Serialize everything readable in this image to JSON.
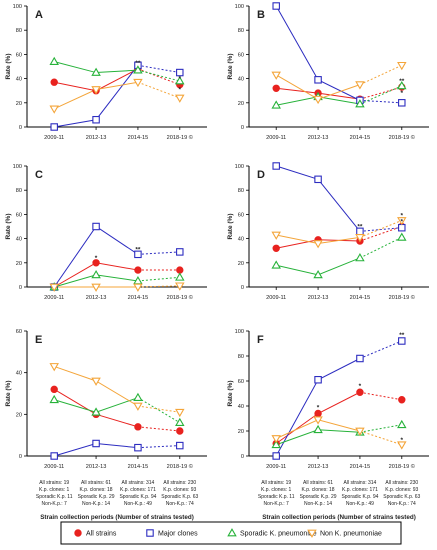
{
  "figure": {
    "xlabel": "Strain collection periods (Number of strains tested)",
    "ylabel": "Rate (%)",
    "categories": [
      "2009-11",
      "2012-13",
      "2014-15",
      "2018-19 ©"
    ],
    "strain_counts": [
      [
        "All strains: 19",
        "K.p. clones: 1",
        "Sporadic K.p. 11",
        "Non-K.p.: 7"
      ],
      [
        "All strains: 61",
        "K.p. clones: 18",
        "Sporadic K.p. 29",
        "Non-K.p.: 14"
      ],
      [
        "All strains: 314",
        "K.p. clones: 171",
        "Sporadic K.p. 94",
        "Non-K.p.: 49"
      ],
      [
        "All strains: 230",
        "K.p. clones: 93",
        "Sporadic K.p. 63",
        "Non-K.p.: 74"
      ]
    ],
    "legend": [
      {
        "label": "All strains",
        "color": "#e8221f",
        "marker": "circle"
      },
      {
        "label": "Major clones",
        "color": "#2c2cc0",
        "marker": "square"
      },
      {
        "label": "Sporadic K. pneumoniae",
        "color": "#27b23a",
        "marker": "triangle-up"
      },
      {
        "label": "Non K. pneumoniae",
        "color": "#f4a53a",
        "marker": "triangle-down"
      }
    ]
  },
  "chart_data": [
    {
      "type": "line",
      "panel": "A",
      "ylim": [
        0,
        100
      ],
      "yticks": [
        0,
        20,
        40,
        60,
        80,
        100
      ],
      "x": [
        "2009-11",
        "2012-13",
        "2014-15",
        "2018-19 ©"
      ],
      "series": [
        {
          "name": "All strains",
          "values": [
            37,
            30,
            48,
            35
          ]
        },
        {
          "name": "Major clones",
          "values": [
            0,
            6,
            51,
            45
          ]
        },
        {
          "name": "Sporadic K. pneumoniae",
          "values": [
            54,
            45,
            47,
            38
          ]
        },
        {
          "name": "Non K. pneumoniae",
          "values": [
            15,
            31,
            37,
            24
          ]
        }
      ],
      "annotations": [
        {
          "x": "2014-15",
          "y": 53,
          "text": "**"
        },
        {
          "x": "2018-19 ©",
          "y": 40,
          "text": "*"
        },
        {
          "x": "2018-19 ©",
          "y": 31,
          "text": "*"
        }
      ]
    },
    {
      "type": "line",
      "panel": "B",
      "ylim": [
        0,
        100
      ],
      "yticks": [
        0,
        20,
        40,
        60,
        80,
        100
      ],
      "x": [
        "2009-11",
        "2012-13",
        "2014-15",
        "2018-19 ©"
      ],
      "series": [
        {
          "name": "All strains",
          "values": [
            32,
            28,
            23,
            33
          ]
        },
        {
          "name": "Major clones",
          "values": [
            100,
            39,
            22,
            20
          ]
        },
        {
          "name": "Sporadic K. pneumoniae",
          "values": [
            18,
            25,
            19,
            34
          ]
        },
        {
          "name": "Non K. pneumoniae",
          "values": [
            43,
            23,
            35,
            51
          ]
        }
      ],
      "annotations": [
        {
          "x": "2018-19 ©",
          "y": 38,
          "text": "**"
        },
        {
          "x": "2018-19 ©",
          "y": 28,
          "text": "*"
        }
      ]
    },
    {
      "type": "line",
      "panel": "C",
      "ylim": [
        0,
        100
      ],
      "yticks": [
        0,
        20,
        40,
        60,
        80,
        100
      ],
      "x": [
        "2009-11",
        "2012-13",
        "2014-15",
        "2018-19 ©"
      ],
      "series": [
        {
          "name": "All strains",
          "values": [
            0,
            20,
            14,
            14
          ]
        },
        {
          "name": "Major clones",
          "values": [
            0,
            50,
            27,
            29
          ]
        },
        {
          "name": "Sporadic K. pneumoniae",
          "values": [
            0,
            10,
            5,
            8
          ]
        },
        {
          "name": "Non K. pneumoniae",
          "values": [
            0,
            0,
            0,
            1
          ]
        }
      ],
      "annotations": [
        {
          "x": "2012-13",
          "y": 24,
          "text": "*"
        },
        {
          "x": "2014-15",
          "y": 31,
          "text": "**"
        }
      ]
    },
    {
      "type": "line",
      "panel": "D",
      "ylim": [
        0,
        100
      ],
      "yticks": [
        0,
        20,
        40,
        60,
        80,
        100
      ],
      "x": [
        "2009-11",
        "2012-13",
        "2014-15",
        "2018-19 ©"
      ],
      "series": [
        {
          "name": "All strains",
          "values": [
            32,
            39,
            38,
            50
          ]
        },
        {
          "name": "Major clones",
          "values": [
            100,
            89,
            46,
            49
          ]
        },
        {
          "name": "Sporadic K. pneumoniae",
          "values": [
            18,
            10,
            24,
            41
          ]
        },
        {
          "name": "Non K. pneumoniae",
          "values": [
            43,
            36,
            41,
            55
          ]
        }
      ],
      "annotations": [
        {
          "x": "2014-15",
          "y": 50,
          "text": "**"
        },
        {
          "x": "2018-19 ©",
          "y": 59,
          "text": "*"
        },
        {
          "x": "2018-19 ©",
          "y": 54,
          "text": "*"
        }
      ]
    },
    {
      "type": "line",
      "panel": "E",
      "ylim": [
        0,
        60
      ],
      "yticks": [
        0,
        20,
        40,
        60
      ],
      "x": [
        "2009-11",
        "2012-13",
        "2014-15",
        "2018-19 ©"
      ],
      "series": [
        {
          "name": "All strains",
          "values": [
            32,
            20,
            14,
            12
          ]
        },
        {
          "name": "Major clones",
          "values": [
            0,
            6,
            4,
            5
          ]
        },
        {
          "name": "Sporadic K. pneumoniae",
          "values": [
            27,
            21,
            28,
            16
          ]
        },
        {
          "name": "Non K. pneumoniae",
          "values": [
            43,
            36,
            24,
            21
          ]
        }
      ],
      "annotations": []
    },
    {
      "type": "line",
      "panel": "F",
      "ylim": [
        0,
        100
      ],
      "yticks": [
        0,
        20,
        40,
        60,
        80,
        100
      ],
      "x": [
        "2009-11",
        "2012-13",
        "2014-15",
        "2018-19 ©"
      ],
      "series": [
        {
          "name": "All strains",
          "values": [
            10,
            34,
            51,
            45
          ]
        },
        {
          "name": "Major clones",
          "values": [
            0,
            61,
            78,
            92
          ]
        },
        {
          "name": "Sporadic K. pneumoniae",
          "values": [
            9,
            21,
            19,
            25
          ]
        },
        {
          "name": "Non K. pneumoniae",
          "values": [
            14,
            29,
            20,
            9
          ]
        }
      ],
      "annotations": [
        {
          "x": "2012-13",
          "y": 39,
          "text": "*"
        },
        {
          "x": "2014-15",
          "y": 56,
          "text": "*"
        },
        {
          "x": "2018-19 ©",
          "y": 97,
          "text": "**"
        },
        {
          "x": "2018-19 ©",
          "y": 13,
          "text": "*"
        }
      ]
    }
  ]
}
